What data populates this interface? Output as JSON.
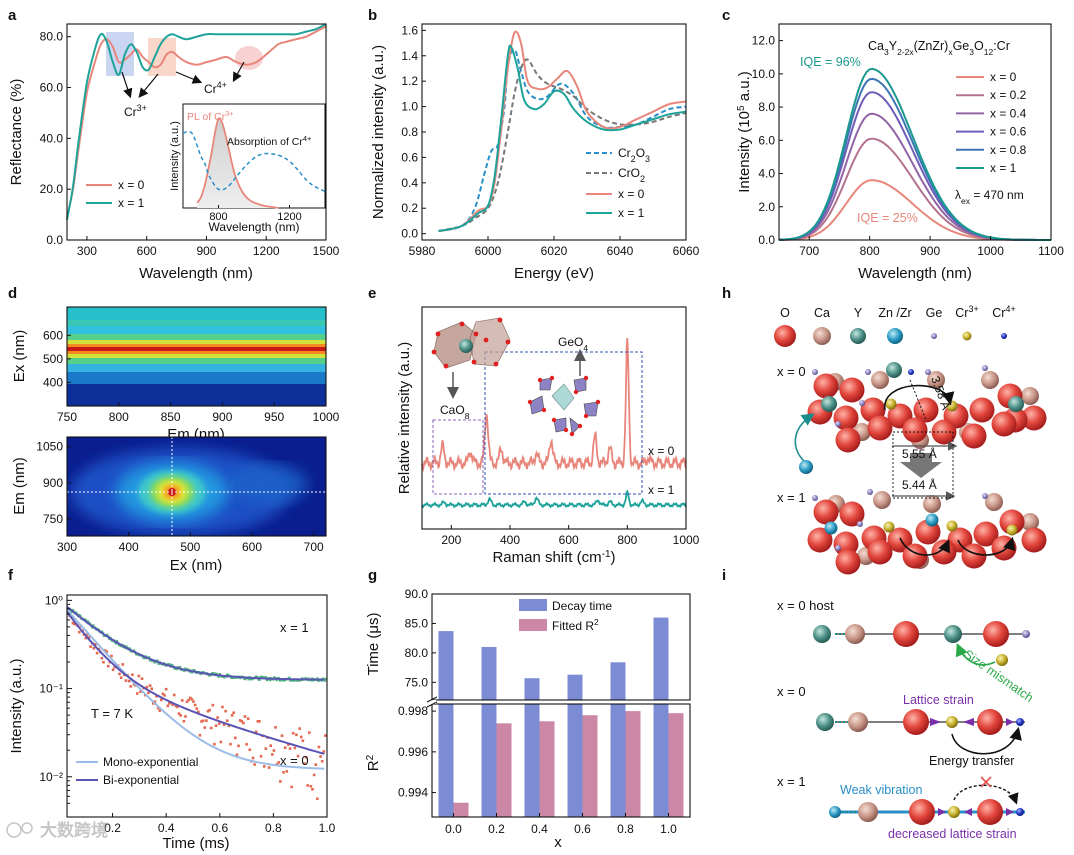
{
  "colors": {
    "pink": "#E8867B",
    "teal": "#1EA39A",
    "dkteal": "#1A8C8C",
    "blue_dash": "#2A8FC9",
    "grey_dash": "#777777",
    "bar_blue": "#7C8CD4",
    "bar_pink": "#CC86A6",
    "scatter_red": "#E4674F",
    "scatter_green": "#4DB37C",
    "mono": "#9BBCE6",
    "bi": "#5A55B5",
    "purple": "#7A2FA8",
    "green_text": "#2BA84A",
    "teal_text": "#2A8FC9",
    "x_series": [
      "#E8867B",
      "#B3728F",
      "#9264A6",
      "#6F5CB8",
      "#3E76B3",
      "#1A9A8E"
    ]
  },
  "panel_labels": [
    "a",
    "b",
    "c",
    "d",
    "e",
    "f",
    "g",
    "h",
    "i"
  ],
  "chart_data": [
    {
      "id": "a",
      "type": "line",
      "xlabel": "Wavelength (nm)",
      "ylabel": "Reflectance (%)",
      "xlim": [
        200,
        1500
      ],
      "ylim": [
        0,
        85
      ],
      "xticks": [
        300,
        600,
        900,
        1200,
        1500
      ],
      "yticks": [
        0.0,
        20.0,
        40.0,
        60.0,
        80.0
      ],
      "ytick_labels": [
        "0.0",
        "20.0",
        "40.0",
        "60.0",
        "80.0"
      ],
      "series": [
        {
          "name": "x = 0",
          "x": [
            200,
            230,
            260,
            300,
            340,
            370,
            400,
            430,
            460,
            490,
            520,
            550,
            580,
            610,
            640,
            670,
            700,
            730,
            760,
            800,
            850,
            900,
            950,
            1000,
            1050,
            1100,
            1150,
            1200,
            1260,
            1300,
            1350,
            1400,
            1450,
            1500
          ],
          "y": [
            9,
            20,
            37,
            58,
            70,
            77,
            79,
            76,
            70,
            71,
            73,
            75,
            72,
            70,
            68,
            69,
            73,
            74,
            72,
            70,
            69,
            70,
            71,
            72,
            70,
            69,
            70,
            73,
            77,
            78,
            79,
            80,
            82,
            84
          ]
        },
        {
          "name": "x = 1",
          "x": [
            200,
            230,
            260,
            300,
            340,
            370,
            400,
            430,
            460,
            490,
            520,
            550,
            580,
            610,
            640,
            670,
            700,
            730,
            760,
            800,
            850,
            900,
            950,
            1000,
            1050,
            1100,
            1150,
            1200,
            1260,
            1300,
            1350,
            1400,
            1450,
            1500
          ],
          "y": [
            8,
            21,
            40,
            62,
            75,
            81,
            78,
            70,
            65,
            73,
            77,
            74,
            68,
            67,
            72,
            77,
            80,
            81,
            80,
            79,
            80,
            81,
            81,
            81,
            81,
            81,
            81,
            81,
            81,
            81,
            81,
            82,
            83,
            85
          ]
        }
      ],
      "annotations": [
        "Cr3+",
        "Cr4+"
      ],
      "inset": {
        "xlabel": "Wavelength (nm)",
        "ylabel": "Intensity (a.u.)",
        "xlim": [
          600,
          1400
        ],
        "xticks": [
          800,
          1200
        ],
        "labels": [
          "PL of Cr3+",
          "Absorption of Cr4+"
        ],
        "pl": {
          "x": [
            680,
            700,
            720,
            740,
            760,
            780,
            800,
            820,
            840,
            860,
            880,
            900,
            940,
            980,
            1020,
            1060,
            1100,
            1140
          ],
          "y": [
            0.05,
            0.1,
            0.2,
            0.35,
            0.52,
            0.72,
            0.86,
            0.82,
            0.7,
            0.55,
            0.4,
            0.28,
            0.14,
            0.07,
            0.04,
            0.02,
            0.01,
            0.0
          ]
        },
        "absorption": {
          "x": [
            600,
            650,
            700,
            720,
            750,
            800,
            850,
            900,
            950,
            1000,
            1050,
            1100,
            1150,
            1200,
            1250,
            1300,
            1350,
            1400
          ],
          "y": [
            0.72,
            0.72,
            0.5,
            0.44,
            0.3,
            0.18,
            0.2,
            0.3,
            0.4,
            0.48,
            0.52,
            0.52,
            0.5,
            0.45,
            0.36,
            0.26,
            0.2,
            0.16
          ]
        }
      }
    },
    {
      "id": "b",
      "type": "line",
      "xlabel": "Energy (eV)",
      "ylabel": "Normalized intensity (a.u.)",
      "xlim": [
        5980,
        6060
      ],
      "ylim": [
        -0.05,
        1.65
      ],
      "xticks": [
        5980,
        6000,
        6020,
        6040,
        6060
      ],
      "yticks": [
        0.0,
        0.2,
        0.4,
        0.6,
        0.8,
        1.0,
        1.2,
        1.4,
        1.6
      ],
      "ytick_labels": [
        "0.0",
        "0.2",
        "0.4",
        "0.6",
        "0.8",
        "1.0",
        "1.2",
        "1.4",
        "1.6"
      ],
      "series": [
        {
          "name": "Cr2O3",
          "style": "dash",
          "x": [
            5985,
            5992,
            5996,
            5999,
            6001,
            6003,
            6005,
            6006,
            6008,
            6010,
            6012,
            6015,
            6018,
            6022,
            6026,
            6030,
            6035,
            6040,
            6045,
            6050,
            6055,
            6060
          ],
          "y": [
            0.02,
            0.06,
            0.2,
            0.48,
            0.65,
            0.7,
            1.0,
            1.32,
            1.45,
            1.28,
            1.12,
            1.06,
            1.08,
            1.18,
            1.1,
            0.92,
            0.84,
            0.84,
            0.86,
            0.92,
            0.98,
            1.0
          ]
        },
        {
          "name": "CrO2",
          "style": "dash",
          "x": [
            5985,
            5992,
            5996,
            6000,
            6003,
            6006,
            6008,
            6010,
            6012,
            6015,
            6018,
            6022,
            6026,
            6030,
            6035,
            6040,
            6045,
            6050,
            6055,
            6060
          ],
          "y": [
            0.02,
            0.06,
            0.12,
            0.2,
            0.4,
            0.8,
            1.1,
            1.3,
            1.37,
            1.25,
            1.18,
            1.14,
            1.08,
            0.98,
            0.9,
            0.86,
            0.86,
            0.88,
            0.92,
            0.95
          ]
        },
        {
          "name": "x = 0",
          "style": "solid",
          "x": [
            5985,
            5992,
            5997,
            6000,
            6002,
            6004,
            6006,
            6008,
            6010,
            6012,
            6015,
            6018,
            6021,
            6024,
            6027,
            6030,
            6035,
            6040,
            6045,
            6050,
            6055,
            6060
          ],
          "y": [
            0.02,
            0.06,
            0.18,
            0.22,
            0.4,
            0.82,
            1.3,
            1.58,
            1.5,
            1.2,
            1.14,
            1.15,
            1.22,
            1.28,
            1.16,
            0.96,
            0.84,
            0.84,
            0.9,
            0.96,
            1.02,
            1.04
          ]
        },
        {
          "name": "x = 1",
          "style": "solid",
          "x": [
            5985,
            5992,
            5997,
            6000,
            6002,
            6004,
            6006,
            6007,
            6009,
            6011,
            6014,
            6017,
            6020,
            6023,
            6026,
            6030,
            6035,
            6040,
            6045,
            6050,
            6055,
            6060
          ],
          "y": [
            0.02,
            0.06,
            0.16,
            0.22,
            0.45,
            0.9,
            1.4,
            1.47,
            1.3,
            1.05,
            0.98,
            1.02,
            1.12,
            1.1,
            0.98,
            0.88,
            0.82,
            0.82,
            0.86,
            0.9,
            0.94,
            0.96
          ]
        }
      ]
    },
    {
      "id": "c",
      "type": "line",
      "xlabel": "Wavelength (nm)",
      "ylabel": "Intensity (10⁵ a.u.)",
      "xlim": [
        650,
        1100
      ],
      "ylim": [
        0,
        13
      ],
      "xticks": [
        700,
        800,
        900,
        1000,
        1100
      ],
      "yticks": [
        0.0,
        2.0,
        4.0,
        6.0,
        8.0,
        10.0,
        12.0
      ],
      "ytick_labels": [
        "0.0",
        "2.0",
        "4.0",
        "6.0",
        "8.0",
        "10.0",
        "12.0"
      ],
      "title": "Ca3Y2-2x(ZnZr)xGe3O12:Cr",
      "series": [
        {
          "name": "x = 0",
          "peak": 3.6
        },
        {
          "name": "x = 0.2",
          "peak": 6.1
        },
        {
          "name": "x = 0.4",
          "peak": 7.6
        },
        {
          "name": "x = 0.6",
          "peak": 8.9
        },
        {
          "name": "x = 0.8",
          "peak": 9.7
        },
        {
          "name": "x = 1",
          "peak": 10.3
        }
      ],
      "peak_wavelength": 803,
      "annotations": [
        "IQE = 96%",
        "IQE = 25%",
        "λex = 470 nm"
      ]
    },
    {
      "id": "d_top",
      "type": "heatmap",
      "xlabel": "Em (nm)",
      "ylabel": "Ex (nm)",
      "xlim": [
        750,
        1000
      ],
      "ylim": [
        300,
        720
      ],
      "xticks": [
        750,
        800,
        850,
        900,
        950,
        1000
      ],
      "yticks": [
        400,
        500,
        600
      ]
    },
    {
      "id": "d_bottom",
      "type": "heatmap",
      "xlabel": "Ex (nm)",
      "ylabel": "Em (nm)",
      "xlim": [
        300,
        720
      ],
      "ylim": [
        680,
        1090
      ],
      "xticks": [
        300,
        400,
        500,
        600,
        700
      ],
      "yticks": [
        750,
        900,
        1050
      ],
      "crosshair": {
        "x": 470,
        "y": 800
      }
    },
    {
      "id": "e",
      "type": "line",
      "xlabel": "Raman shift (cm⁻¹)",
      "ylabel": "Relative intensity (a.u.)",
      "xlim": [
        100,
        1000
      ],
      "xticks": [
        200,
        400,
        600,
        800,
        1000
      ],
      "series": [
        {
          "name": "x = 0",
          "peaks": [
            [
              170,
              0.14
            ],
            [
              265,
              0.1
            ],
            [
              320,
              0.42
            ],
            [
              370,
              0.12
            ],
            [
              490,
              0.08
            ],
            [
              540,
              0.2
            ],
            [
              690,
              0.22
            ],
            [
              740,
              0.12
            ],
            [
              800,
              1.0
            ],
            [
              870,
              0.04
            ]
          ]
        },
        {
          "name": "x = 1",
          "peaks": [
            [
              175,
              0.06
            ],
            [
              330,
              0.14
            ],
            [
              450,
              0.08
            ],
            [
              490,
              0.18
            ],
            [
              700,
              0.12
            ],
            [
              740,
              0.08
            ],
            [
              800,
              0.3
            ],
            [
              850,
              0.1
            ]
          ]
        }
      ],
      "annotations": [
        "GeO4",
        "CaO8"
      ]
    },
    {
      "id": "f",
      "type": "scatter",
      "xlabel": "Time (ms)",
      "ylabel": "Intensity (a.u.)",
      "yscale": "log",
      "xlim": [
        0.03,
        1.0
      ],
      "ylim": [
        0.0035,
        1.15
      ],
      "xticks": [
        0.2,
        0.4,
        0.6,
        0.8,
        1.0
      ],
      "xtick_labels": [
        "0.2",
        "0.4",
        "0.6",
        "0.8",
        "1.0"
      ],
      "yticks": [
        0.01,
        0.1,
        1
      ],
      "ytick_labels": [
        "10⁻²",
        "10⁻¹",
        "10⁰"
      ],
      "series": [
        {
          "name": "Mono-exponential"
        },
        {
          "name": "Bi-exponential"
        }
      ],
      "annotations": [
        "x = 1",
        "x = 0",
        "T = 7 K"
      ]
    },
    {
      "id": "g",
      "type": "bar",
      "xlabel": "x",
      "ylabel_top": "Time (μs)",
      "ylabel_bottom": "R²",
      "categories": [
        "0.0",
        "0.2",
        "0.4",
        "0.6",
        "0.8",
        "1.0"
      ],
      "series": [
        {
          "name": "Decay time",
          "values": [
            83.7,
            81.0,
            75.7,
            76.3,
            78.4,
            86.0
          ]
        },
        {
          "name": "Fitted R²",
          "values": [
            0.9935,
            0.9974,
            0.9975,
            0.9978,
            0.998,
            0.9979
          ]
        }
      ],
      "ylim_top": [
        72,
        90
      ],
      "yticks_top": [
        75.0,
        80.0,
        85.0,
        90.0
      ],
      "ytick_labels_top": [
        "75.0",
        "80.0",
        "85.0",
        "90.0"
      ],
      "ylim_bottom": [
        0.9928,
        0.99835
      ],
      "yticks_bottom": [
        0.994,
        0.996,
        0.998
      ],
      "ytick_labels_bottom": [
        "0.994",
        "0.996",
        "0.998"
      ]
    }
  ],
  "panel_h": {
    "legend": [
      "O",
      "Ca",
      "Y",
      "Zn /Zr",
      "Ge",
      "Cr3+",
      "Cr4+"
    ],
    "rows": [
      "x = 0",
      "x = 1"
    ],
    "distances": [
      "3.58 Å",
      "5.55 Å",
      "5.44 Å"
    ]
  },
  "panel_i": {
    "rows": [
      "x = 0 host",
      "x = 0",
      "x = 1"
    ],
    "labels": [
      "Size mismatch",
      "Lattice strain",
      "Energy transfer",
      "Weak vibration",
      "decreased lattice strain"
    ]
  },
  "watermark": "大数跨境"
}
